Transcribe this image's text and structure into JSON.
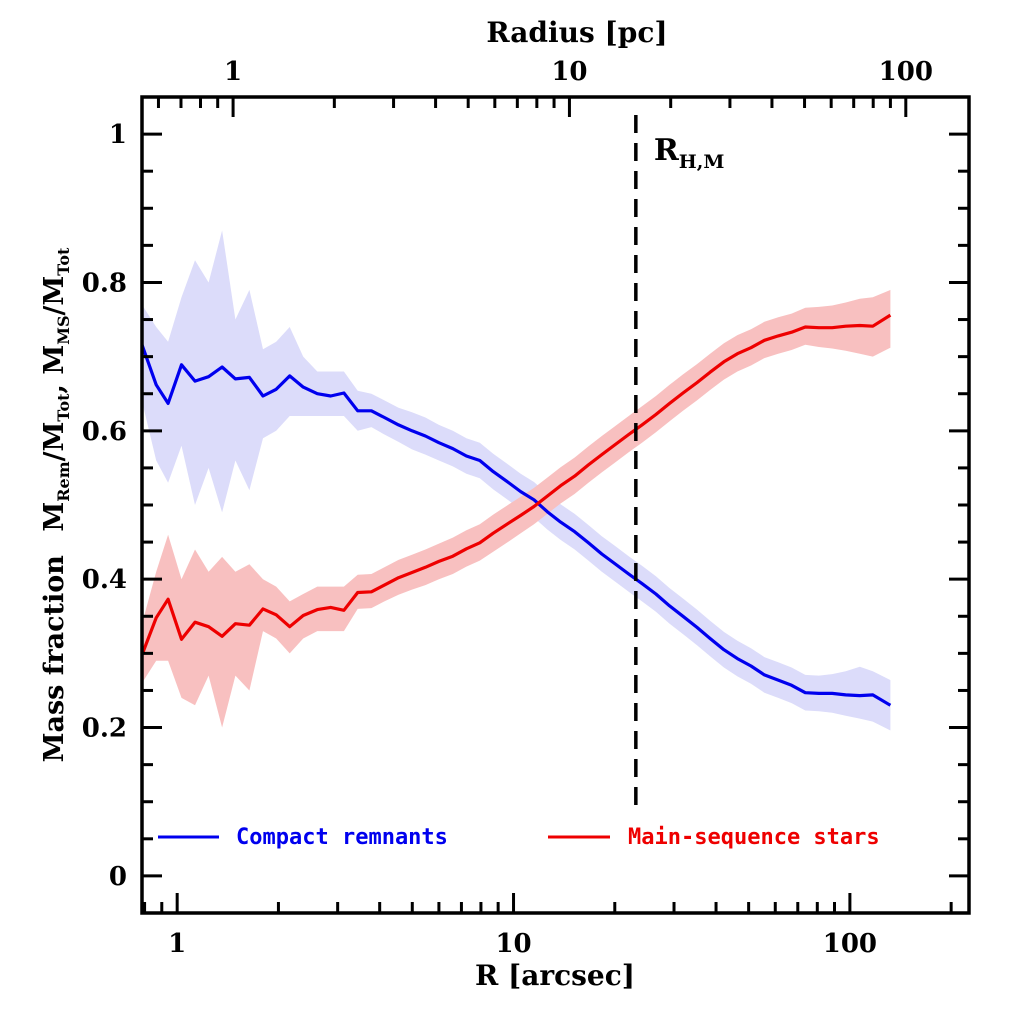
{
  "chart_data": {
    "type": "line",
    "title": "",
    "xlabel": "R [arcsec]",
    "xlabel_top": "Radius [pc]",
    "ylabel": "Mass fraction  M_Rem/M_Tot, M_MS/M_Tot",
    "ylabel_parts": {
      "main": "Mass fraction",
      "frac1_base": "M",
      "frac1_sub": "Rem",
      "frac1_den_base": "M",
      "frac1_den_sub": "Tot",
      "frac2_base": "M",
      "frac2_sub": "MS",
      "frac2_den_base": "M",
      "frac2_den_sub": "Tot"
    },
    "xscale": "log",
    "xlim": [
      0.786,
      226
    ],
    "ylim": [
      -0.05,
      1.05
    ],
    "x_ticks": [
      1,
      10,
      100
    ],
    "x_tick_labels": [
      "1",
      "10",
      "100"
    ],
    "x_top_ticks_pc": [
      1,
      10,
      100
    ],
    "x_top_tick_labels": [
      "1",
      "10",
      "100"
    ],
    "pc_per_arcsec": 0.682,
    "y_ticks": [
      0,
      0.2,
      0.4,
      0.6,
      0.8,
      1
    ],
    "y_tick_labels": [
      "0",
      "0.2",
      "0.4",
      "0.6",
      "0.8",
      "1"
    ],
    "grid": false,
    "legend_position": "bottom",
    "annotations": [
      {
        "type": "vline",
        "x": 23.1,
        "style": "dashed",
        "label_base": "R",
        "label_sub": "H,M"
      }
    ],
    "series": [
      {
        "name": "Compact remnants",
        "color": "#0000ee",
        "band_color": "#dcdcfa",
        "x": [
          0.786,
          0.866,
          0.94,
          1.03,
          1.13,
          1.24,
          1.36,
          1.49,
          1.64,
          1.8,
          1.97,
          2.16,
          2.37,
          2.61,
          2.86,
          3.13,
          3.44,
          3.78,
          4.13,
          4.55,
          4.99,
          5.47,
          6.0,
          6.6,
          7.24,
          7.94,
          8.7,
          9.55,
          10.5,
          11.5,
          12.6,
          13.8,
          15.2,
          16.7,
          18.3,
          20.0,
          22.0,
          24.1,
          26.5,
          29.1,
          31.9,
          35.1,
          38.4,
          42.2,
          46.3,
          50.8,
          55.7,
          61.2,
          67.1,
          73.7,
          80.9,
          88.6,
          97.2,
          107,
          117,
          132
        ],
        "y": [
          0.716,
          0.662,
          0.637,
          0.689,
          0.667,
          0.673,
          0.686,
          0.67,
          0.672,
          0.647,
          0.656,
          0.674,
          0.659,
          0.65,
          0.647,
          0.651,
          0.627,
          0.627,
          0.618,
          0.608,
          0.6,
          0.593,
          0.584,
          0.576,
          0.566,
          0.56,
          0.545,
          0.532,
          0.518,
          0.507,
          0.491,
          0.477,
          0.464,
          0.449,
          0.434,
          0.421,
          0.407,
          0.394,
          0.38,
          0.364,
          0.35,
          0.335,
          0.32,
          0.305,
          0.293,
          0.283,
          0.271,
          0.264,
          0.257,
          0.247,
          0.246,
          0.246,
          0.244,
          0.243,
          0.244,
          0.23
        ],
        "band_lower": [
          0.64,
          0.56,
          0.53,
          0.58,
          0.5,
          0.55,
          0.49,
          0.56,
          0.52,
          0.59,
          0.6,
          0.62,
          0.62,
          0.62,
          0.62,
          0.62,
          0.6,
          0.605,
          0.595,
          0.585,
          0.575,
          0.568,
          0.56,
          0.552,
          0.542,
          0.536,
          0.521,
          0.508,
          0.494,
          0.483,
          0.467,
          0.453,
          0.44,
          0.425,
          0.41,
          0.397,
          0.383,
          0.37,
          0.356,
          0.34,
          0.326,
          0.311,
          0.296,
          0.281,
          0.269,
          0.259,
          0.247,
          0.24,
          0.233,
          0.223,
          0.222,
          0.22,
          0.216,
          0.212,
          0.208,
          0.196
        ],
        "band_upper": [
          0.77,
          0.74,
          0.72,
          0.78,
          0.83,
          0.8,
          0.87,
          0.75,
          0.79,
          0.71,
          0.72,
          0.74,
          0.7,
          0.68,
          0.68,
          0.68,
          0.654,
          0.65,
          0.641,
          0.631,
          0.625,
          0.618,
          0.608,
          0.6,
          0.59,
          0.584,
          0.569,
          0.556,
          0.542,
          0.531,
          0.515,
          0.501,
          0.488,
          0.473,
          0.458,
          0.445,
          0.431,
          0.418,
          0.404,
          0.388,
          0.374,
          0.359,
          0.344,
          0.329,
          0.317,
          0.307,
          0.295,
          0.288,
          0.281,
          0.271,
          0.27,
          0.272,
          0.276,
          0.282,
          0.276,
          0.264
        ]
      },
      {
        "name": "Main-sequence stars",
        "color": "#ee0000",
        "band_color": "#f8c0c0",
        "x": [
          0.786,
          0.866,
          0.94,
          1.03,
          1.13,
          1.24,
          1.36,
          1.49,
          1.64,
          1.8,
          1.97,
          2.16,
          2.37,
          2.61,
          2.86,
          3.13,
          3.44,
          3.78,
          4.13,
          4.55,
          4.99,
          5.47,
          6.0,
          6.6,
          7.24,
          7.94,
          8.7,
          9.55,
          10.5,
          11.5,
          12.6,
          13.8,
          15.2,
          16.7,
          18.3,
          20.0,
          22.0,
          24.1,
          26.5,
          29.1,
          31.9,
          35.1,
          38.4,
          42.2,
          46.3,
          50.8,
          55.7,
          61.2,
          67.1,
          73.7,
          80.9,
          88.6,
          97.2,
          107,
          117,
          132
        ],
        "y": [
          0.298,
          0.348,
          0.373,
          0.319,
          0.342,
          0.336,
          0.323,
          0.34,
          0.338,
          0.36,
          0.352,
          0.336,
          0.351,
          0.359,
          0.362,
          0.358,
          0.382,
          0.383,
          0.392,
          0.402,
          0.409,
          0.416,
          0.424,
          0.431,
          0.441,
          0.449,
          0.462,
          0.474,
          0.486,
          0.498,
          0.512,
          0.526,
          0.539,
          0.554,
          0.568,
          0.581,
          0.595,
          0.608,
          0.622,
          0.637,
          0.651,
          0.665,
          0.679,
          0.693,
          0.704,
          0.712,
          0.722,
          0.728,
          0.733,
          0.74,
          0.739,
          0.739,
          0.741,
          0.742,
          0.741,
          0.756
        ],
        "band_lower": [
          0.26,
          0.29,
          0.29,
          0.24,
          0.23,
          0.27,
          0.2,
          0.27,
          0.25,
          0.33,
          0.32,
          0.3,
          0.32,
          0.33,
          0.33,
          0.33,
          0.36,
          0.361,
          0.37,
          0.379,
          0.386,
          0.392,
          0.4,
          0.407,
          0.417,
          0.425,
          0.437,
          0.449,
          0.462,
          0.474,
          0.488,
          0.502,
          0.515,
          0.53,
          0.544,
          0.557,
          0.571,
          0.584,
          0.598,
          0.613,
          0.627,
          0.641,
          0.655,
          0.669,
          0.68,
          0.688,
          0.698,
          0.704,
          0.709,
          0.716,
          0.713,
          0.711,
          0.708,
          0.704,
          0.7,
          0.712
        ],
        "band_upper": [
          0.34,
          0.41,
          0.46,
          0.4,
          0.44,
          0.41,
          0.43,
          0.41,
          0.42,
          0.4,
          0.39,
          0.37,
          0.38,
          0.39,
          0.39,
          0.39,
          0.406,
          0.407,
          0.416,
          0.426,
          0.433,
          0.44,
          0.448,
          0.456,
          0.466,
          0.474,
          0.487,
          0.499,
          0.511,
          0.523,
          0.537,
          0.551,
          0.564,
          0.579,
          0.593,
          0.606,
          0.62,
          0.633,
          0.647,
          0.662,
          0.676,
          0.69,
          0.704,
          0.718,
          0.729,
          0.737,
          0.747,
          0.753,
          0.758,
          0.766,
          0.767,
          0.769,
          0.773,
          0.778,
          0.78,
          0.79
        ]
      }
    ]
  }
}
